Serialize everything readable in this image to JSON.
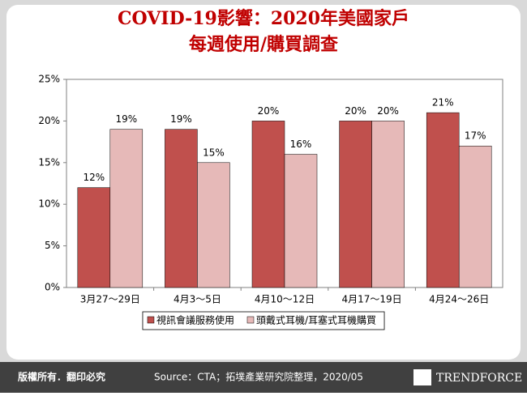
{
  "chart_data": {
    "type": "bar",
    "title": [
      "COVID-19影響：2020年美國家戶",
      "每週使用/購買調查"
    ],
    "categories": [
      "3月27～29日",
      "4月3～5日",
      "4月10～12日",
      "4月17～19日",
      "4月24～26日"
    ],
    "series": [
      {
        "name": "視訊會議服務使用",
        "color": "#c0504d",
        "values": [
          12,
          19,
          20,
          20,
          21
        ],
        "value_labels": [
          "12%",
          "19%",
          "20%",
          "20%",
          "21%"
        ]
      },
      {
        "name": "頭戴式耳機/耳塞式耳機購買",
        "color": "#e6b9b8",
        "values": [
          19,
          15,
          16,
          20,
          17
        ],
        "value_labels": [
          "19%",
          "15%",
          "16%",
          "20%",
          "17%"
        ]
      }
    ],
    "ylim": [
      0,
      25
    ],
    "yticks": [
      {
        "value": 0,
        "label": "0%"
      },
      {
        "value": 5,
        "label": "5%"
      },
      {
        "value": 10,
        "label": "10%"
      },
      {
        "value": 15,
        "label": "15%"
      },
      {
        "value": 20,
        "label": "20%"
      },
      {
        "value": 25,
        "label": "25%"
      }
    ],
    "grid": false,
    "legend": "bottom"
  },
  "footer": {
    "rights": "版權所有．翻印必究",
    "source": "Source：CTA；拓墣產業研究院整理，2020/05",
    "logo": "TRENDFORCE"
  }
}
